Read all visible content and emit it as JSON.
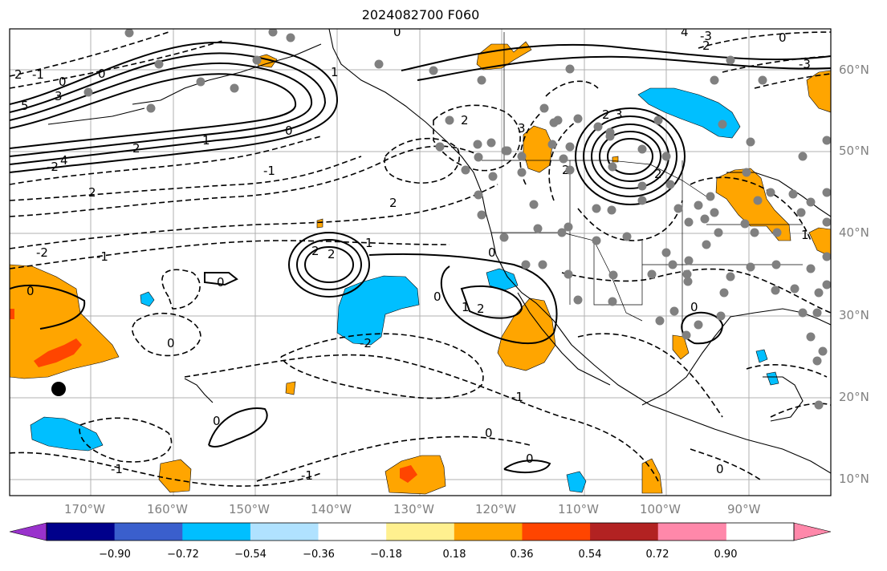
{
  "title": "2024082700 F060",
  "map": {
    "lon_labels": [
      "170°W",
      "160°W",
      "150°W",
      "140°W",
      "130°W",
      "120°W",
      "110°W",
      "100°W",
      "90°W"
    ],
    "lat_labels": [
      "60°N",
      "50°N",
      "40°N",
      "30°N",
      "20°N",
      "10°N"
    ],
    "contour_labels": [
      "0",
      "1",
      "2",
      "3",
      "4",
      "5",
      "-1",
      "-2",
      "-3",
      "-4",
      "-5"
    ],
    "fill_colors": {
      "positive_weak": "#ffa500",
      "positive_strong": "#ff4500",
      "negative": "#00bfff"
    },
    "station_color": "#808080"
  },
  "colorbar": {
    "ticks": [
      "−0.90",
      "−0.72",
      "−0.54",
      "−0.36",
      "−0.18",
      "0.18",
      "0.36",
      "0.54",
      "0.72",
      "0.90"
    ],
    "colors": [
      "#9932cc",
      "#00008b",
      "#3a5fcd",
      "#00bfff",
      "#b0e2ff",
      "#ffffff",
      "#fff08f",
      "#ffa500",
      "#ff4500",
      "#b22222",
      "#ff88aa",
      "#ff88aa"
    ]
  }
}
